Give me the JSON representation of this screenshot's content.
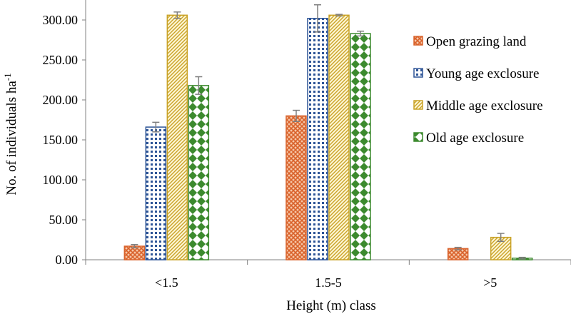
{
  "chart_data": {
    "type": "bar",
    "title": "",
    "xlabel": "Height (m) class",
    "ylabel": "No. of individuals ha",
    "ylabel_superscript": "-1",
    "categories": [
      "<1.5",
      "1.5-5",
      ">5"
    ],
    "ylim": [
      0,
      300
    ],
    "yticks": [
      0,
      50,
      100,
      150,
      200,
      250,
      300
    ],
    "ytick_labels": [
      "0.00",
      "50.00",
      "100.00",
      "150.00",
      "200.00",
      "250.00",
      "300.00"
    ],
    "grid": false,
    "legend_position": "right",
    "series": [
      {
        "name": "Open grazing land",
        "values": [
          17,
          180,
          14
        ],
        "errors": [
          2,
          7,
          1.5
        ],
        "color": "#d9622b",
        "pattern": "crosshatch"
      },
      {
        "name": "Young age exclosure",
        "values": [
          166,
          302,
          0
        ],
        "errors": [
          6,
          17,
          0
        ],
        "color": "#2e5597",
        "pattern": "dots"
      },
      {
        "name": "Middle age exclosure",
        "values": [
          306,
          306,
          28
        ],
        "errors": [
          4,
          1,
          5
        ],
        "color": "#c9a227",
        "pattern": "diagonal"
      },
      {
        "name": "Old age exclosure",
        "values": [
          218,
          283,
          2
        ],
        "errors": [
          11,
          3,
          1
        ],
        "color": "#3c8a2e",
        "pattern": "diamonds"
      }
    ]
  }
}
